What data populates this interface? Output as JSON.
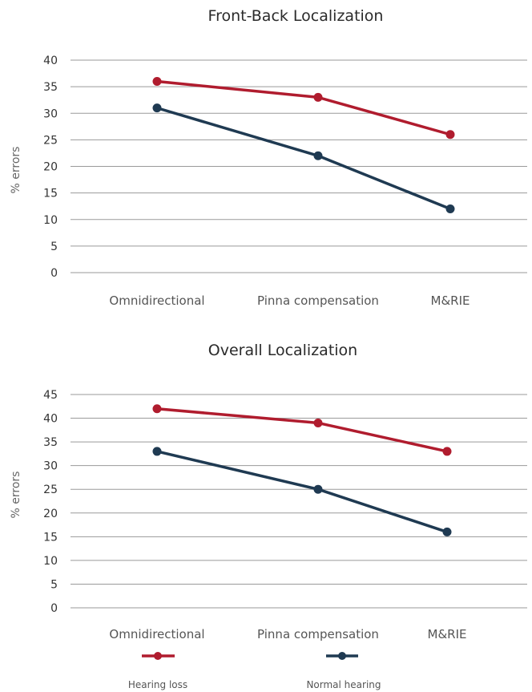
{
  "chart_data": [
    {
      "type": "line",
      "title": "Front-Back Localization",
      "ylabel": "% errors",
      "xlabel": "",
      "categories": [
        "Omnidirectional",
        "Pinna compensation",
        "M&RIE"
      ],
      "ylim": [
        0,
        40
      ],
      "yticks": [
        0,
        5,
        10,
        15,
        20,
        25,
        30,
        35,
        40
      ],
      "grid": true,
      "series": [
        {
          "name": "Hearing loss",
          "color": "#b01c2e",
          "values": [
            36,
            33,
            26
          ]
        },
        {
          "name": "Normal hearing",
          "color": "#1f3a52",
          "values": [
            31,
            22,
            12
          ]
        }
      ]
    },
    {
      "type": "line",
      "title": "Overall Localization",
      "ylabel": "% errors",
      "xlabel": "",
      "categories": [
        "Omnidirectional",
        "Pinna compensation",
        "M&RIE"
      ],
      "ylim": [
        0,
        45
      ],
      "yticks": [
        0,
        5,
        10,
        15,
        20,
        25,
        30,
        35,
        40,
        45
      ],
      "grid": true,
      "series": [
        {
          "name": "Hearing loss",
          "color": "#b01c2e",
          "values": [
            42,
            39,
            33
          ]
        },
        {
          "name": "Normal hearing",
          "color": "#1f3a52",
          "values": [
            33,
            25,
            16
          ]
        }
      ]
    }
  ],
  "legend": {
    "placement": "bottom",
    "items": [
      {
        "label": "Hearing loss",
        "color": "#b01c2e"
      },
      {
        "label": "Normal hearing",
        "color": "#1f3a52"
      }
    ]
  }
}
